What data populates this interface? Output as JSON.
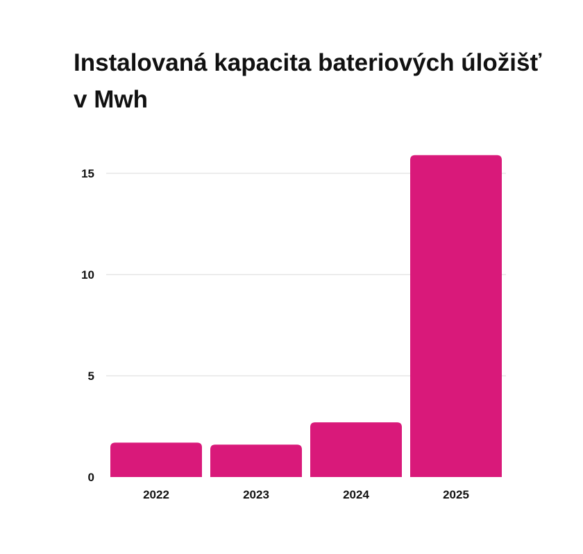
{
  "chart_data": {
    "type": "bar",
    "title": "Instalovaná kapacita bateriových úložišť v Mwh",
    "categories": [
      "2022",
      "2023",
      "2024",
      "2025"
    ],
    "values": [
      1.7,
      1.6,
      2.7,
      15.9
    ],
    "ylim": [
      0,
      16.5
    ],
    "yticks": [
      0,
      5,
      10,
      15
    ],
    "grid": true,
    "legend": "none",
    "bar_color": "#D9197A",
    "grid_color": "#d8d8d8"
  }
}
